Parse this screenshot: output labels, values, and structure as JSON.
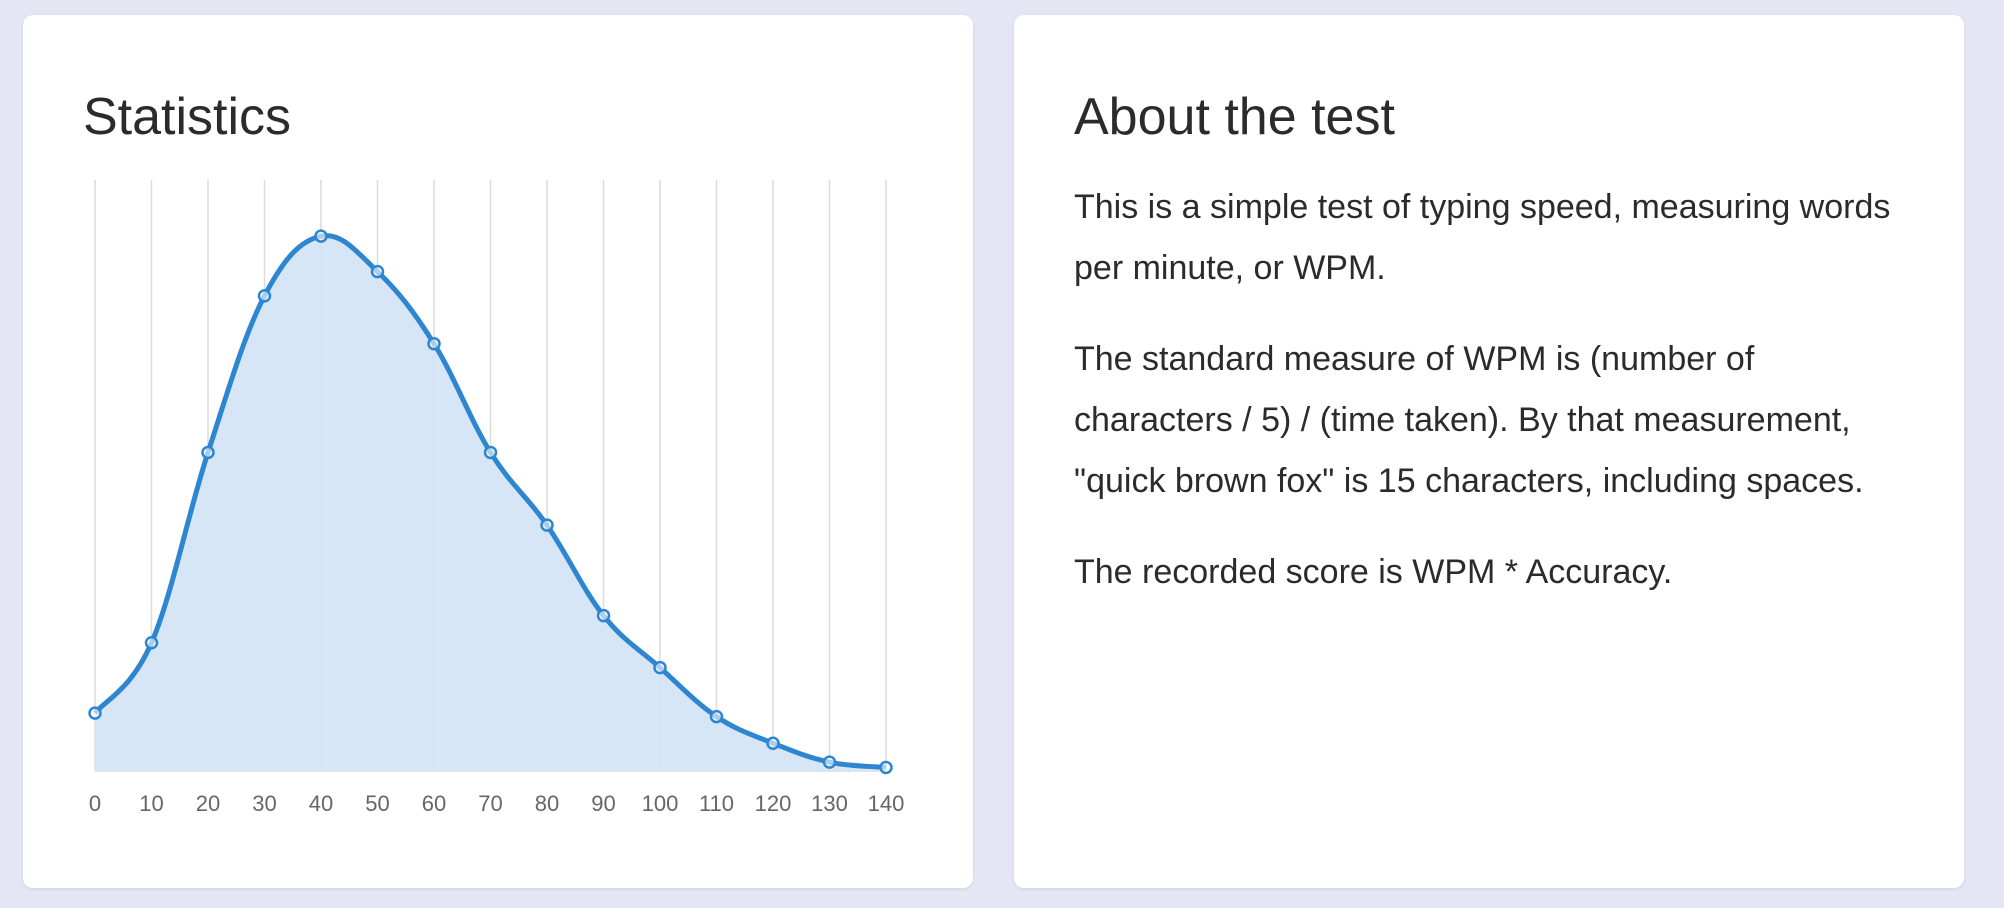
{
  "stats": {
    "title": "Statistics"
  },
  "about": {
    "title": "About the test",
    "paragraphs": [
      "This is a simple test of typing speed, measuring words per minute, or WPM.",
      "The standard measure of WPM is (number of characters / 5) / (time taken). By that measurement, \"quick brown fox\" is 15 characters, including spaces.",
      "The recorded score is WPM * Accuracy."
    ]
  },
  "colors": {
    "line": "#2f86d0",
    "fill": "#d4e5f7",
    "point_fill": "#ffffff"
  },
  "chart_data": {
    "type": "area",
    "title": "",
    "xlabel": "",
    "ylabel": "",
    "x": [
      0,
      10,
      20,
      30,
      40,
      50,
      60,
      70,
      80,
      90,
      100,
      110,
      120,
      130,
      140
    ],
    "values": [
      9.8,
      21.7,
      53.9,
      80.4,
      90.5,
      84.5,
      72.3,
      53.9,
      41.6,
      26.3,
      17.5,
      9.2,
      4.7,
      1.5,
      0.6
    ],
    "xlim": [
      0,
      140
    ],
    "ylim": [
      0,
      100
    ],
    "grid": "vertical",
    "y_axis_labels": "hidden",
    "legend": "none"
  }
}
